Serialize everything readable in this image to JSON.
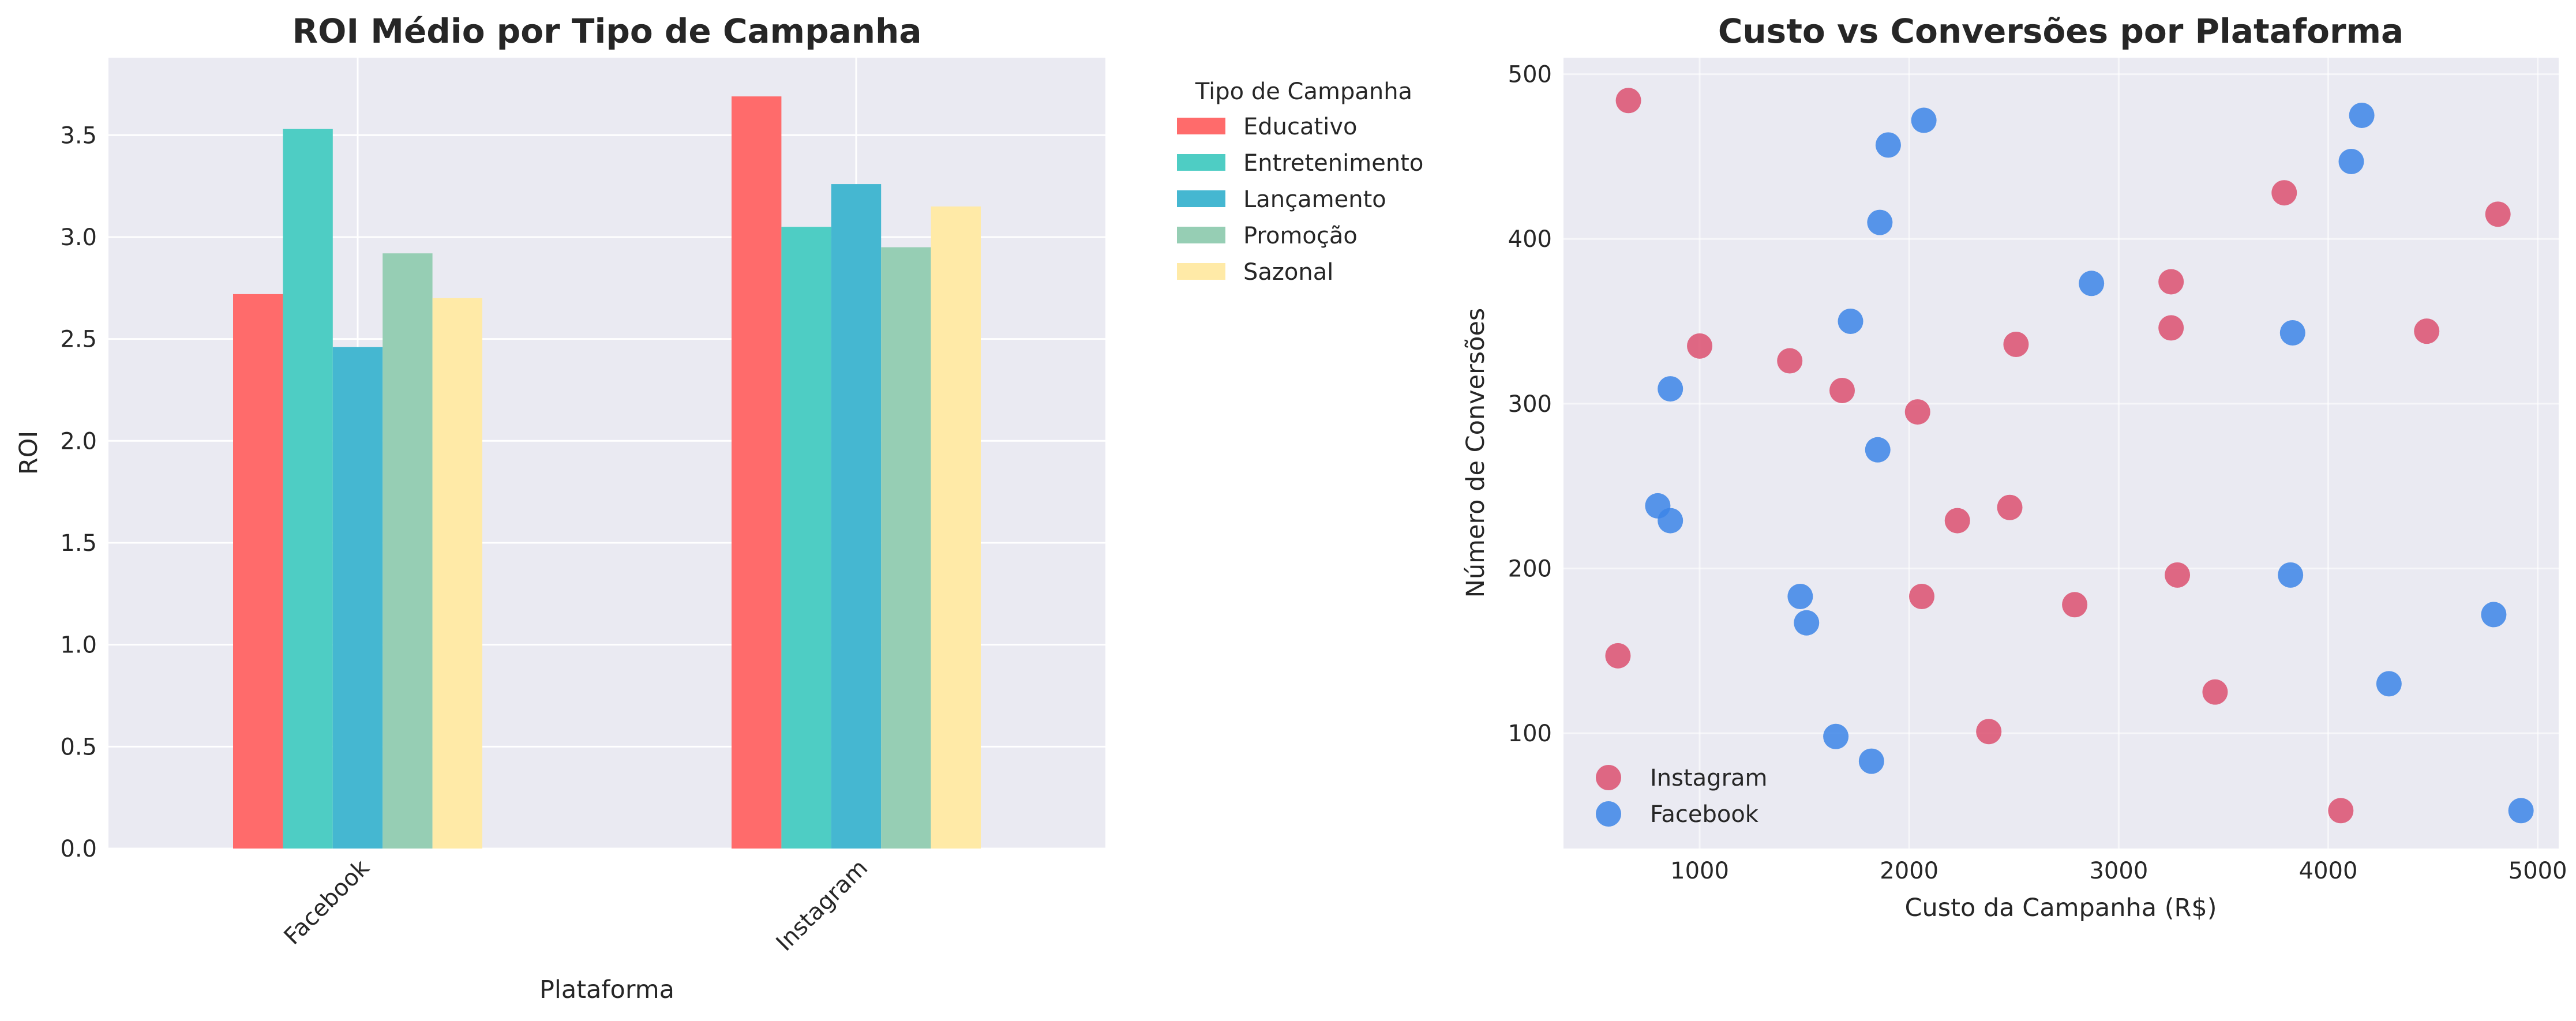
{
  "chart_data": [
    {
      "type": "bar",
      "title": "ROI Médio por Tipo de Campanha",
      "xlabel": "Plataforma",
      "ylabel": "ROI",
      "categories": [
        "Facebook",
        "Instagram"
      ],
      "ylim": [
        0,
        3.88
      ],
      "yticks": [
        "0.0",
        "0.5",
        "1.0",
        "1.5",
        "2.0",
        "2.5",
        "3.0",
        "3.5"
      ],
      "grid": true,
      "legend_title": "Tipo de Campanha",
      "legend_position": "outside-top-right",
      "series": [
        {
          "name": "Educativo",
          "color": "#ff6b6b",
          "values": [
            2.72,
            3.69
          ]
        },
        {
          "name": "Entretenimento",
          "color": "#4ecdc4",
          "values": [
            3.53,
            3.05
          ]
        },
        {
          "name": "Lançamento",
          "color": "#45b7d1",
          "values": [
            2.46,
            3.26
          ]
        },
        {
          "name": "Promoção",
          "color": "#96ceb4",
          "values": [
            2.92,
            2.95
          ]
        },
        {
          "name": "Sazonal",
          "color": "#ffeaa7",
          "values": [
            2.7,
            3.15
          ]
        }
      ]
    },
    {
      "type": "scatter",
      "title": "Custo vs Conversões por Plataforma",
      "xlabel": "Custo da Campanha (R$)",
      "ylabel": "Número de Conversões",
      "xlim": [
        350,
        5100
      ],
      "ylim": [
        30,
        510
      ],
      "xticks": [
        "1000",
        "2000",
        "3000",
        "4000",
        "5000"
      ],
      "yticks": [
        "100",
        "200",
        "300",
        "400",
        "500"
      ],
      "grid": true,
      "legend_position": "lower-left",
      "series": [
        {
          "name": "Instagram",
          "color": "#dc5070",
          "points": [
            [
              660,
              484
            ],
            [
              1000,
              335
            ],
            [
              1430,
              326
            ],
            [
              1680,
              308
            ],
            [
              2040,
              295
            ],
            [
              2510,
              336
            ],
            [
              3250,
              374
            ],
            [
              3250,
              346
            ],
            [
              3790,
              428
            ],
            [
              4810,
              415
            ],
            [
              4470,
              344
            ],
            [
              610,
              147
            ],
            [
              2060,
              183
            ],
            [
              2230,
              229
            ],
            [
              2480,
              237
            ],
            [
              2790,
              178
            ],
            [
              3280,
              196
            ],
            [
              2380,
              101
            ],
            [
              3460,
              125
            ],
            [
              4060,
              53
            ]
          ]
        },
        {
          "name": "Facebook",
          "color": "#3c85e8",
          "points": [
            [
              2070,
              472
            ],
            [
              1900,
              457
            ],
            [
              1860,
              410
            ],
            [
              1720,
              350
            ],
            [
              860,
              309
            ],
            [
              2870,
              373
            ],
            [
              4160,
              475
            ],
            [
              4110,
              447
            ],
            [
              3830,
              343
            ],
            [
              800,
              238
            ],
            [
              860,
              229
            ],
            [
              1850,
              272
            ],
            [
              1480,
              183
            ],
            [
              1510,
              167
            ],
            [
              1650,
              98
            ],
            [
              1820,
              83
            ],
            [
              3820,
              196
            ],
            [
              4290,
              130
            ],
            [
              4790,
              172
            ],
            [
              4920,
              53
            ]
          ]
        }
      ]
    }
  ]
}
